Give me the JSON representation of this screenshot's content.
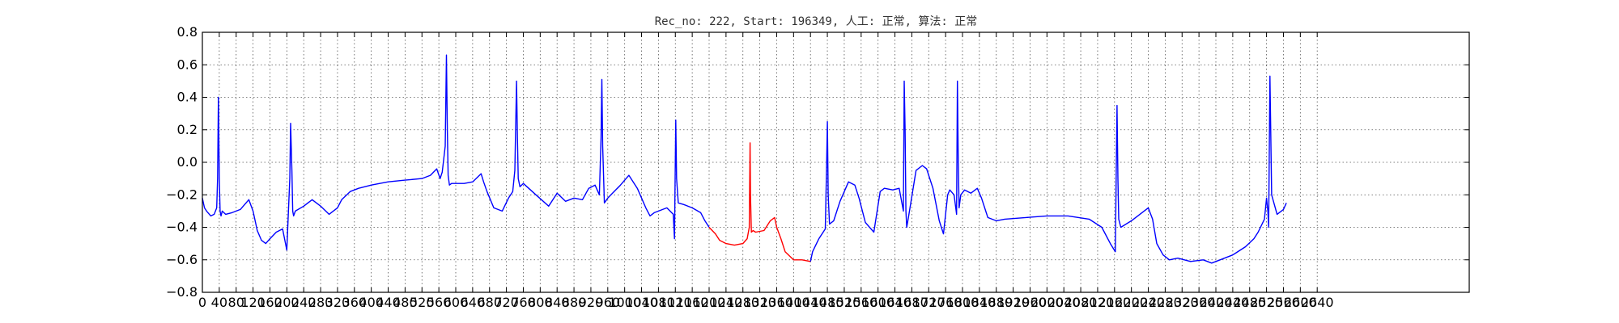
{
  "chart_data": {
    "type": "line",
    "title": "Rec_no: 222, Start: 196349, 人工: 正常, 算法: 正常",
    "xlabel": "",
    "ylabel": "",
    "xlim": [
      0,
      3000
    ],
    "ylim": [
      -0.8,
      0.8
    ],
    "grid": true,
    "yticks": [
      -0.8,
      -0.6,
      -0.4,
      -0.2,
      0.0,
      0.2,
      0.4,
      0.6,
      0.8
    ],
    "ytick_labels": [
      "−0.8",
      "−0.6",
      "−0.4",
      "−0.2",
      "0.0",
      "0.2",
      "0.4",
      "0.6",
      "0.8"
    ],
    "xticks": [
      0,
      40,
      80,
      120,
      160,
      200,
      240,
      280,
      320,
      360,
      400,
      440,
      480,
      520,
      560,
      600,
      640,
      680,
      720,
      760,
      800,
      840,
      880,
      920,
      960,
      1000,
      1040,
      1080,
      1120,
      1160,
      1200,
      1240,
      1280,
      1320,
      1360,
      1400,
      1440,
      1480,
      1520,
      1560,
      1600,
      1640,
      1680,
      1720,
      1760,
      1800,
      1840,
      1880,
      1920,
      1960,
      2000,
      2040,
      2080,
      2120,
      2160,
      2200,
      2240,
      2280,
      2320,
      2360,
      2400,
      2440,
      2480,
      2520,
      2560,
      2600,
      2640
    ],
    "xtick_labels": [
      "0",
      "40",
      "80",
      "120",
      "160",
      "200",
      "240",
      "280",
      "320",
      "360",
      "400",
      "440",
      "480",
      "520",
      "560",
      "600",
      "640",
      "680",
      "720",
      "760",
      "800",
      "840",
      "880",
      "920",
      "960",
      "1000",
      "1040",
      "1080",
      "1120",
      "1160",
      "1200",
      "1240",
      "1280",
      "1320",
      "1360",
      "1400",
      "1440",
      "1480",
      "1520",
      "1560",
      "1600",
      "1640",
      "1680",
      "1720",
      "1760",
      "1800",
      "1840",
      "1880",
      "1920",
      "1960",
      "2000",
      "2040",
      "2080",
      "2120",
      "2160",
      "2200",
      "2240",
      "2280",
      "2320",
      "2360",
      "2400",
      "2440",
      "2480",
      "2520",
      "2560",
      "2600",
      "2640"
    ],
    "series": [
      {
        "color": "#0000ff",
        "x": [
          0,
          5,
          10,
          20,
          28,
          34,
          36,
          38,
          40,
          42,
          44,
          47,
          55,
          70,
          90,
          110,
          120,
          130,
          140,
          150,
          160,
          175,
          190,
          200,
          207,
          209,
          212,
          214,
          216,
          220,
          240,
          260,
          280,
          300,
          320,
          330,
          350,
          370,
          400,
          440,
          480,
          520,
          540,
          555,
          563,
          568,
          575,
          578,
          580,
          582,
          585,
          590,
          620,
          640,
          660,
          666,
          674,
          690,
          710,
          725,
          735,
          740,
          744,
          746,
          748,
          752,
          760,
          790,
          820,
          840,
          860,
          880,
          900,
          915,
          930,
          940,
          944,
          946,
          948,
          952,
          960,
          990,
          1010,
          1030,
          1050,
          1060,
          1070,
          1100,
          1115,
          1118,
          1121,
          1123,
          1127,
          1140,
          1160,
          1180,
          1190,
          1200
        ],
        "y": [
          -0.22,
          -0.28,
          -0.3,
          -0.33,
          -0.32,
          -0.28,
          -0.1,
          0.4,
          -0.1,
          -0.3,
          -0.33,
          -0.3,
          -0.32,
          -0.31,
          -0.29,
          -0.23,
          -0.3,
          -0.42,
          -0.48,
          -0.5,
          -0.47,
          -0.43,
          -0.41,
          -0.54,
          -0.1,
          0.24,
          -0.05,
          -0.3,
          -0.33,
          -0.3,
          -0.27,
          -0.23,
          -0.27,
          -0.32,
          -0.28,
          -0.23,
          -0.18,
          -0.16,
          -0.14,
          -0.12,
          -0.11,
          -0.1,
          -0.08,
          -0.04,
          -0.1,
          -0.06,
          0.1,
          0.66,
          0.2,
          -0.08,
          -0.14,
          -0.13,
          -0.13,
          -0.12,
          -0.07,
          -0.12,
          -0.18,
          -0.28,
          -0.3,
          -0.22,
          -0.18,
          -0.05,
          0.5,
          0.15,
          -0.1,
          -0.15,
          -0.13,
          -0.2,
          -0.27,
          -0.19,
          -0.24,
          -0.22,
          -0.23,
          -0.16,
          -0.14,
          -0.2,
          0.15,
          0.51,
          0.1,
          -0.25,
          -0.22,
          -0.14,
          -0.08,
          -0.16,
          -0.28,
          -0.33,
          -0.31,
          -0.28,
          -0.32,
          -0.47,
          0.26,
          -0.1,
          -0.25,
          -0.26,
          -0.28,
          -0.31,
          -0.36,
          -0.4
        ]
      },
      {
        "color": "#ff0000",
        "x": [
          1200,
          1215,
          1225,
          1240,
          1260,
          1280,
          1290,
          1295,
          1297,
          1298,
          1300,
          1304,
          1310,
          1330,
          1345,
          1355,
          1360,
          1370,
          1380,
          1400,
          1420,
          1440
        ],
        "y": [
          -0.4,
          -0.44,
          -0.48,
          -0.5,
          -0.51,
          -0.5,
          -0.47,
          -0.4,
          0.12,
          -0.2,
          -0.43,
          -0.42,
          -0.43,
          -0.42,
          -0.36,
          -0.34,
          -0.4,
          -0.47,
          -0.55,
          -0.6,
          -0.6,
          -0.61
        ]
      },
      {
        "color": "#0000ff",
        "x": [
          1440,
          1445,
          1460,
          1475,
          1478,
          1480,
          1482,
          1485,
          1495,
          1510,
          1530,
          1545,
          1555,
          1570,
          1590,
          1605,
          1615,
          1635,
          1650,
          1660,
          1662,
          1664,
          1666,
          1668,
          1672,
          1690,
          1705,
          1715,
          1730,
          1745,
          1755,
          1765,
          1770,
          1780,
          1786,
          1788,
          1790,
          1792,
          1796,
          1805,
          1820,
          1835,
          1845,
          1860,
          1880,
          1900,
          1950,
          2000,
          2050,
          2100,
          2130,
          2150,
          2162,
          2166,
          2168,
          2170,
          2175,
          2200,
          2220,
          2240,
          2250,
          2260,
          2275,
          2290,
          2310,
          2340,
          2370,
          2390,
          2410,
          2440,
          2470,
          2490,
          2500,
          2515,
          2520,
          2523,
          2525,
          2528,
          2532,
          2545,
          2560,
          2567
        ],
        "y": [
          -0.61,
          -0.55,
          -0.47,
          -0.41,
          -0.05,
          0.25,
          -0.2,
          -0.38,
          -0.36,
          -0.24,
          -0.12,
          -0.14,
          -0.22,
          -0.37,
          -0.43,
          -0.18,
          -0.16,
          -0.17,
          -0.16,
          -0.3,
          0.5,
          0.2,
          -0.3,
          -0.4,
          -0.34,
          -0.05,
          -0.02,
          -0.04,
          -0.16,
          -0.36,
          -0.44,
          -0.2,
          -0.17,
          -0.2,
          -0.32,
          0.5,
          0.0,
          -0.28,
          -0.2,
          -0.17,
          -0.19,
          -0.16,
          -0.22,
          -0.34,
          -0.36,
          -0.35,
          -0.34,
          -0.33,
          -0.33,
          -0.35,
          -0.4,
          -0.5,
          -0.55,
          0.35,
          -0.1,
          -0.35,
          -0.4,
          -0.36,
          -0.32,
          -0.28,
          -0.35,
          -0.5,
          -0.57,
          -0.6,
          -0.59,
          -0.61,
          -0.6,
          -0.62,
          -0.6,
          -0.57,
          -0.52,
          -0.47,
          -0.43,
          -0.35,
          -0.22,
          -0.3,
          -0.4,
          0.53,
          -0.2,
          -0.32,
          -0.29,
          -0.25
        ]
      }
    ]
  }
}
